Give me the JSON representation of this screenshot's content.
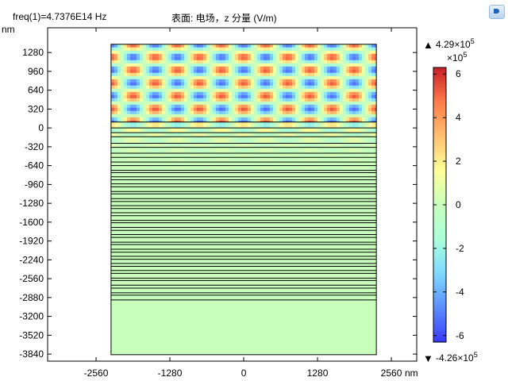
{
  "header": {
    "left_title": "freq(1)=4.7376E14 Hz",
    "center_title": "表面: 电场，z 分量 (V/m)"
  },
  "chart_data": {
    "type": "heatmap",
    "x_unit": "nm",
    "y_unit": "nm",
    "xlim": [
      -3400,
      3000
    ],
    "ylim": [
      -3960,
      1700
    ],
    "x_ticks": [
      -2560,
      -1280,
      0,
      1280,
      2560
    ],
    "y_ticks": [
      1280,
      960,
      640,
      320,
      0,
      -320,
      -640,
      -960,
      -1280,
      -1600,
      -1920,
      -2240,
      -2560,
      -2880,
      -3200,
      -3520,
      -3840
    ],
    "domain": {
      "x": [
        -2300,
        2300
      ],
      "y": [
        -3850,
        1420
      ]
    },
    "superstrate_pattern": {
      "y_range": [
        100,
        1420
      ],
      "columns": 6,
      "rows": 3,
      "amplitude_fraction": 0.85
    },
    "layer_boundaries": [
      100,
      0,
      -80,
      -150,
      -260,
      -330,
      -430,
      -500,
      -580,
      -640,
      -720,
      -760,
      -830,
      -880,
      -950,
      -1000,
      -1080,
      -1120,
      -1200,
      -1250,
      -1320,
      -1370,
      -1440,
      -1490,
      -1570,
      -1610,
      -1690,
      -1740,
      -1810,
      -1860,
      -1940,
      -1980,
      -2060,
      -2110,
      -2180,
      -2230,
      -2300,
      -2350,
      -2420,
      -2470,
      -2550,
      -2590,
      -2670,
      -2720,
      -2800,
      -2840,
      -2920
    ],
    "substrate": {
      "y_range": [
        -3850,
        -2920
      ],
      "value_fraction": 0.0
    },
    "colorbar": {
      "max_label": "4.29×10",
      "max_exp": "5",
      "min_label": "-4.26×10",
      "min_exp": "5",
      "scale_label": "×10",
      "scale_exp": "5",
      "range": [
        -6.3,
        6.3
      ],
      "ticks": [
        6,
        4,
        2,
        0,
        -2,
        -4,
        -6
      ],
      "colormap": [
        "#3a3aff",
        "#5b8dff",
        "#7fd9ff",
        "#aaffd9",
        "#c9ffbd",
        "#ffff99",
        "#ffc070",
        "#ff7a4a",
        "#c81e28"
      ]
    }
  }
}
